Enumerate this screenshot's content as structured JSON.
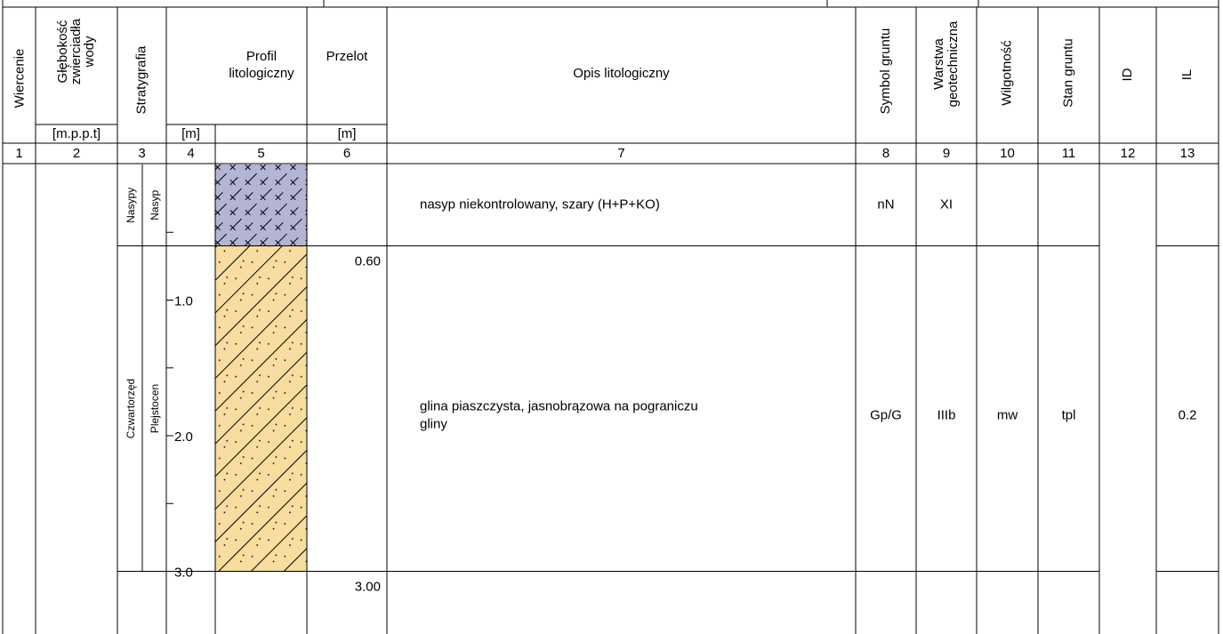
{
  "header": {
    "wiercenie": "Wiercenie",
    "glebokosc": [
      "Głębokość",
      "zwierciadła",
      "wody"
    ],
    "glebokosc_unit": "[m.p.p.t]",
    "stratygrafia": "Stratygrafia",
    "profil": [
      "Profil",
      "litologiczny"
    ],
    "profil_unit": "[m]",
    "przelot": "Przelot",
    "przelot_unit": "[m]",
    "opis": "Opis litologiczny",
    "symbol": "Symbol gruntu",
    "warstwa": [
      "Warstwa",
      "geotechniczna"
    ],
    "wilgotnosc": "Wilgotność",
    "stan": "Stan gruntu",
    "id": "ID",
    "il": "IL"
  },
  "column_numbers": [
    1,
    2,
    3,
    4,
    5,
    6,
    7,
    8,
    9,
    10,
    11,
    12,
    13
  ],
  "depth_scale": [
    "1.0",
    "2.0",
    "3.0"
  ],
  "layers": [
    {
      "era": "Nasypy",
      "epoch": "Nasyp",
      "description": [
        "nasyp niekontrolowany, szary (H+P+KO)"
      ],
      "symbol": "nN",
      "layer": "XI"
    },
    {
      "era": "Czwartorzęd",
      "epoch": "Plejstocen",
      "top": "0.60",
      "bottom": "3.00",
      "description": [
        "glina piaszczysta, jasnobrązowa na pograniczu",
        "gliny"
      ],
      "symbol": "Gp/G",
      "layer": "IIIb",
      "moisture": "mw",
      "state": "tpl",
      "il": "0.2"
    }
  ]
}
